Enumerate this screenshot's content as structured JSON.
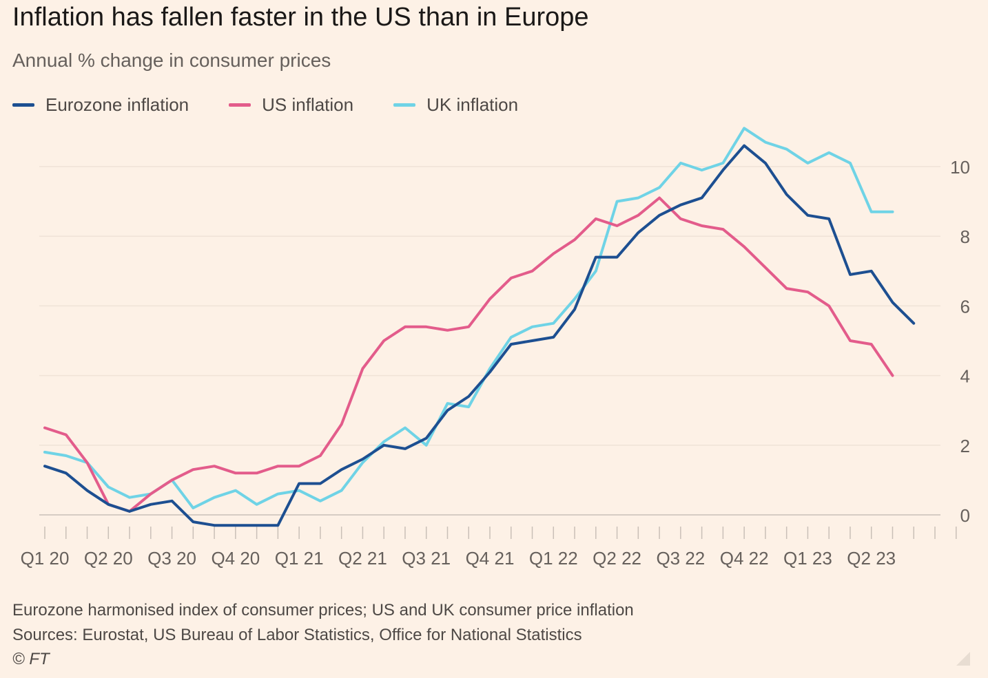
{
  "title": "Inflation has fallen faster in the US than in Europe",
  "subtitle": "Annual % change in consumer prices",
  "legend": [
    {
      "label": "Eurozone inflation",
      "color": "#1d4f91"
    },
    {
      "label": "US inflation",
      "color": "#e35c8b"
    },
    {
      "label": "UK inflation",
      "color": "#6fd3e6"
    }
  ],
  "footnotes": {
    "note": "Eurozone harmonised index of consumer prices; US and UK consumer price inflation",
    "sources": "Sources: Eurostat, US Bureau of Labor Statistics, Office for National Statistics",
    "copyright": "© FT"
  },
  "chart_data": {
    "type": "line",
    "title": "Inflation has fallen faster in the US than in Europe",
    "subtitle": "Annual % change in consumer prices",
    "x": [
      "2020-01",
      "2020-02",
      "2020-03",
      "2020-04",
      "2020-05",
      "2020-06",
      "2020-07",
      "2020-08",
      "2020-09",
      "2020-10",
      "2020-11",
      "2020-12",
      "2021-01",
      "2021-02",
      "2021-03",
      "2021-04",
      "2021-05",
      "2021-06",
      "2021-07",
      "2021-08",
      "2021-09",
      "2021-10",
      "2021-11",
      "2021-12",
      "2022-01",
      "2022-02",
      "2022-03",
      "2022-04",
      "2022-05",
      "2022-06",
      "2022-07",
      "2022-08",
      "2022-09",
      "2022-10",
      "2022-11",
      "2022-12",
      "2023-01",
      "2023-02",
      "2023-03",
      "2023-04",
      "2023-05",
      "2023-06",
      "2023-07"
    ],
    "x_ticks": [
      "Q1 20",
      "Q2 20",
      "Q3 20",
      "Q4 20",
      "Q1 21",
      "Q2 21",
      "Q3 21",
      "Q4 21",
      "Q1 22",
      "Q2 22",
      "Q3 22",
      "Q4 22",
      "Q1 23",
      "Q2 23"
    ],
    "xlim": [
      "2020-01",
      "2023-08"
    ],
    "y_ticks": [
      0,
      2,
      4,
      6,
      8,
      10
    ],
    "ylim": [
      -0.5,
      11.2
    ],
    "y_axis_side": "right",
    "grid": true,
    "legend_position": "top-left",
    "series": [
      {
        "name": "Eurozone inflation",
        "color": "#1d4f91",
        "values": [
          1.4,
          1.2,
          0.7,
          0.3,
          0.1,
          0.3,
          0.4,
          -0.2,
          -0.3,
          -0.3,
          -0.3,
          -0.3,
          0.9,
          0.9,
          1.3,
          1.6,
          2.0,
          1.9,
          2.2,
          3.0,
          3.4,
          4.1,
          4.9,
          5.0,
          5.1,
          5.9,
          7.4,
          7.4,
          8.1,
          8.6,
          8.9,
          9.1,
          9.9,
          10.6,
          10.1,
          9.2,
          8.6,
          8.5,
          6.9,
          7.0,
          6.1,
          5.5,
          null
        ]
      },
      {
        "name": "US inflation",
        "color": "#e35c8b",
        "values": [
          2.5,
          2.3,
          1.5,
          0.3,
          0.1,
          0.6,
          1.0,
          1.3,
          1.4,
          1.2,
          1.2,
          1.4,
          1.4,
          1.7,
          2.6,
          4.2,
          5.0,
          5.4,
          5.4,
          5.3,
          5.4,
          6.2,
          6.8,
          7.0,
          7.5,
          7.9,
          8.5,
          8.3,
          8.6,
          9.1,
          8.5,
          8.3,
          8.2,
          7.7,
          7.1,
          6.5,
          6.4,
          6.0,
          5.0,
          4.9,
          4.0,
          null,
          null
        ]
      },
      {
        "name": "UK inflation",
        "color": "#6fd3e6",
        "values": [
          1.8,
          1.7,
          1.5,
          0.8,
          0.5,
          0.6,
          1.0,
          0.2,
          0.5,
          0.7,
          0.3,
          0.6,
          0.7,
          0.4,
          0.7,
          1.5,
          2.1,
          2.5,
          2.0,
          3.2,
          3.1,
          4.2,
          5.1,
          5.4,
          5.5,
          6.2,
          7.0,
          9.0,
          9.1,
          9.4,
          10.1,
          9.9,
          10.1,
          11.1,
          10.7,
          10.5,
          10.1,
          10.4,
          10.1,
          8.7,
          8.7,
          null,
          null
        ]
      }
    ]
  }
}
